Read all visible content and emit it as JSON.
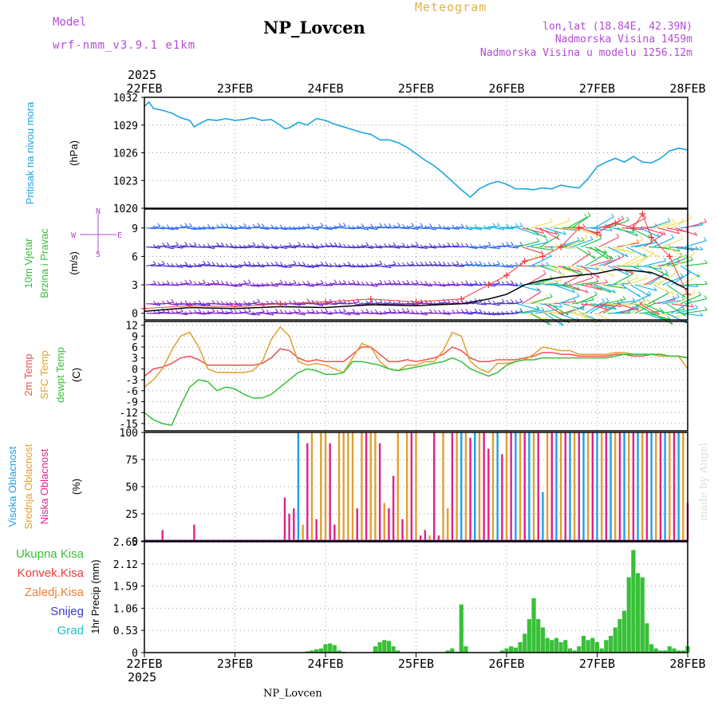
{
  "header": {
    "model_label": "Model",
    "model_name": "wrf-nmm_v3.9.1 e1km",
    "meteogram_title": "Meteogram",
    "station": "NP_Lovcen",
    "lonlat": "lon,lat (18.84E, 42.39N)",
    "altitude": "Nadmorska Visina 1459m",
    "model_altitude": "Nadmorska Visina u modelu 1256.12m"
  },
  "time_axis": {
    "year": "2025",
    "ticks": [
      "22FEB",
      "23FEB",
      "24FEB",
      "25FEB",
      "26FEB",
      "27FEB",
      "28FEB"
    ]
  },
  "watermark": "made by Angel",
  "footer": "NP_Lovcen",
  "chart_data": [
    {
      "type": "line",
      "ylabel": [
        "Pritisak na nivou mora",
        "(hPa)"
      ],
      "ylim": [
        1020,
        1032
      ],
      "yticks": [
        1020,
        1023,
        1026,
        1029,
        1032
      ],
      "x_unit": "days since 22FEB 00UTC",
      "x": [
        0,
        0.05,
        0.1,
        0.2,
        0.3,
        0.4,
        0.5,
        0.55,
        0.6,
        0.7,
        0.8,
        0.9,
        1.0,
        1.1,
        1.2,
        1.3,
        1.4,
        1.5,
        1.55,
        1.6,
        1.7,
        1.8,
        1.9,
        2.0,
        2.1,
        2.2,
        2.3,
        2.4,
        2.5,
        2.6,
        2.7,
        2.8,
        2.9,
        3.0,
        3.1,
        3.2,
        3.3,
        3.4,
        3.5,
        3.55,
        3.6,
        3.7,
        3.8,
        3.9,
        4.0,
        4.1,
        4.2,
        4.3,
        4.4,
        4.5,
        4.6,
        4.7,
        4.8,
        4.9,
        5.0,
        5.1,
        5.2,
        5.3,
        5.4,
        5.5,
        5.6,
        5.7,
        5.8,
        5.9,
        6.0
      ],
      "series": [
        {
          "color": "#1aa6e0",
          "values": [
            1031.0,
            1031.5,
            1030.8,
            1030.6,
            1030.3,
            1029.8,
            1029.5,
            1028.8,
            1029.1,
            1029.6,
            1029.5,
            1029.7,
            1029.5,
            1029.6,
            1029.8,
            1029.5,
            1029.6,
            1029.0,
            1028.6,
            1028.7,
            1029.3,
            1029.0,
            1029.7,
            1029.5,
            1029.1,
            1028.8,
            1028.5,
            1028.2,
            1028.0,
            1027.4,
            1027.4,
            1027.1,
            1026.6,
            1025.9,
            1025.2,
            1024.6,
            1023.8,
            1022.9,
            1022.0,
            1021.6,
            1021.2,
            1022.1,
            1022.6,
            1022.9,
            1022.6,
            1022.1,
            1022.1,
            1022.0,
            1022.2,
            1022.1,
            1022.5,
            1022.3,
            1022.2,
            1023.2,
            1024.5,
            1025.0,
            1025.4,
            1025.0,
            1025.6,
            1025.0,
            1024.9,
            1025.4,
            1026.2,
            1026.5,
            1026.3
          ]
        }
      ]
    },
    {
      "type": "scatter",
      "ylabel": [
        "10m Vjetar",
        "Brzina i Pravac",
        "(m/s)"
      ],
      "ylim": [
        -0.7,
        11
      ],
      "yticks": [
        0,
        3,
        6,
        9
      ],
      "compass": [
        "N",
        "S",
        "W",
        "E"
      ],
      "description": "wind barbs at levels 0,1,3,5,7,9; red plus markers = gust, black line = mean speed",
      "levels": [
        0,
        1,
        3,
        5,
        7,
        9
      ],
      "barb_colors": [
        "#7b24c9",
        "#4a2fd6",
        "#2e6bf0",
        "#17b4e6",
        "#25c24a",
        "#f0e060",
        "#f04a6a"
      ],
      "gust_series": {
        "name": "gust",
        "color": "#f03a3a",
        "x": [
          0,
          0.5,
          1.0,
          1.5,
          2.0,
          2.5,
          3.0,
          3.5,
          3.8,
          4.0,
          4.2,
          4.4,
          4.6,
          4.8,
          5.0,
          5.2,
          5.4,
          5.5,
          5.6,
          5.8,
          6.0
        ],
        "values": [
          0.5,
          0.8,
          0.7,
          1.0,
          1.2,
          1.5,
          1.2,
          1.5,
          3.0,
          4.0,
          5.5,
          6.0,
          7.0,
          9.0,
          8.5,
          9.5,
          9.0,
          10.5,
          8.0,
          6.0,
          2.0
        ]
      },
      "mean_series": {
        "name": "mean",
        "color": "#000000",
        "x": [
          0,
          0.5,
          1.0,
          1.5,
          2.0,
          2.5,
          3.0,
          3.5,
          3.8,
          4.0,
          4.2,
          4.4,
          4.6,
          4.8,
          5.0,
          5.2,
          5.4,
          5.6,
          5.8,
          6.0
        ],
        "values": [
          0.2,
          0.6,
          0.5,
          0.7,
          0.6,
          0.9,
          0.8,
          1.0,
          1.5,
          2.0,
          3.0,
          3.5,
          3.8,
          4.0,
          4.2,
          4.6,
          4.5,
          4.3,
          3.5,
          2.5
        ]
      }
    },
    {
      "type": "line",
      "ylabel": [
        "2m Temp",
        "SFC Temp",
        "dewpt Temp",
        "(C)"
      ],
      "ylim": [
        -17,
        13
      ],
      "yticks": [
        12,
        9,
        6,
        3,
        0,
        -3,
        -6,
        -9,
        -12,
        -15
      ],
      "x": [
        0,
        0.1,
        0.2,
        0.3,
        0.4,
        0.5,
        0.6,
        0.7,
        0.8,
        0.9,
        1.0,
        1.1,
        1.2,
        1.3,
        1.4,
        1.5,
        1.6,
        1.7,
        1.8,
        1.9,
        2.0,
        2.1,
        2.2,
        2.3,
        2.4,
        2.5,
        2.6,
        2.7,
        2.8,
        2.9,
        3.0,
        3.1,
        3.2,
        3.3,
        3.4,
        3.5,
        3.6,
        3.7,
        3.8,
        3.9,
        4.0,
        4.1,
        4.2,
        4.3,
        4.4,
        4.5,
        4.6,
        4.7,
        4.8,
        4.9,
        5.0,
        5.1,
        5.2,
        5.3,
        5.4,
        5.5,
        5.6,
        5.7,
        5.8,
        5.9,
        6.0
      ],
      "series": [
        {
          "name": "2m Temp",
          "color": "#f05050",
          "values": [
            -2,
            0,
            0.5,
            1.5,
            3,
            3.5,
            2.5,
            1,
            1,
            1,
            1,
            1,
            1,
            1.5,
            3,
            5.5,
            5,
            3,
            2,
            2.5,
            2,
            2,
            2,
            4,
            6,
            6,
            4,
            2,
            2,
            2.5,
            2,
            2.5,
            3,
            4,
            6,
            5,
            3,
            2,
            2,
            2.5,
            2.5,
            2.5,
            3,
            3.5,
            4.5,
            4.5,
            4,
            4,
            3.5,
            3.5,
            3.5,
            3.5,
            4,
            4,
            3.5,
            3.5,
            4,
            4,
            3.5,
            3.5,
            3
          ]
        },
        {
          "name": "SFC Temp",
          "color": "#e0a030",
          "values": [
            -5,
            -3,
            0,
            5,
            9,
            10,
            6,
            0,
            -1,
            -1,
            -1,
            -1,
            -0.5,
            2,
            8,
            11.5,
            9,
            2,
            1,
            1.5,
            1,
            0,
            -1,
            3,
            7,
            6,
            2,
            0,
            -0.5,
            1,
            1,
            2,
            2,
            5,
            10,
            9,
            2,
            0,
            -1,
            1.5,
            1.5,
            2,
            2.5,
            4,
            6,
            5.5,
            5,
            5,
            4,
            4,
            4,
            4,
            4.5,
            4.5,
            4,
            4,
            4,
            3.5,
            3.5,
            3.5,
            0
          ]
        },
        {
          "name": "dewpt Temp",
          "color": "#38c038",
          "values": [
            -12,
            -14,
            -15,
            -15.5,
            -10,
            -5,
            -3,
            -3.5,
            -6,
            -5,
            -5.5,
            -7,
            -8,
            -8,
            -7,
            -5,
            -3,
            -1,
            0,
            -0.5,
            -1.5,
            -1.5,
            -1,
            2,
            2,
            1.5,
            1,
            0,
            -0.5,
            0,
            0.5,
            1,
            1.5,
            2,
            3,
            2,
            0,
            -1,
            -2,
            -1,
            1,
            2,
            2.5,
            2.5,
            3,
            3,
            3,
            3,
            3,
            3,
            3,
            3,
            3.5,
            4,
            4,
            4,
            4,
            4,
            3.5,
            3.5,
            3
          ]
        }
      ]
    },
    {
      "type": "bar",
      "ylabel": [
        "Visoka Oblacnost",
        "Srednja Oblacnost",
        "Niska Oblacnost",
        "(%)"
      ],
      "ylim": [
        0,
        100
      ],
      "yticks": [
        0,
        25,
        50,
        75,
        100
      ],
      "series": [
        {
          "name": "Visoka Oblacnost",
          "color": "#1ea0e8"
        },
        {
          "name": "Srednja Oblacnost",
          "color": "#e0a030"
        },
        {
          "name": "Niska Oblacnost",
          "color": "#e0208a"
        }
      ],
      "x": [
        0.2,
        0.55,
        1.55,
        1.6,
        1.65,
        1.7,
        1.75,
        1.8,
        1.85,
        1.9,
        1.95,
        2.0,
        2.05,
        2.1,
        2.15,
        2.2,
        2.25,
        2.3,
        2.35,
        2.4,
        2.45,
        2.5,
        2.55,
        2.6,
        2.65,
        2.7,
        2.75,
        2.8,
        2.85,
        2.9,
        2.95,
        3.0,
        3.05,
        3.1,
        3.15,
        3.2,
        3.25,
        3.3,
        3.35,
        3.4,
        3.45,
        3.5,
        3.55,
        3.6,
        3.65,
        3.7,
        3.75,
        3.8,
        3.85,
        3.9,
        3.95,
        4.0,
        4.05,
        4.1,
        4.15,
        4.2,
        4.25,
        4.3,
        4.35,
        4.4,
        4.45,
        4.5,
        4.55,
        4.6,
        4.65,
        4.7,
        4.75,
        4.8,
        4.85,
        4.9,
        4.95,
        5.0,
        5.05,
        5.1,
        5.15,
        5.2,
        5.25,
        5.3,
        5.35,
        5.4,
        5.45,
        5.5,
        5.55,
        5.6,
        5.65,
        5.7,
        5.75,
        5.8,
        5.85,
        5.9,
        5.95,
        6.0
      ],
      "values": [
        10,
        15,
        40,
        25,
        30,
        100,
        15,
        90,
        100,
        20,
        100,
        100,
        90,
        15,
        100,
        100,
        100,
        100,
        30,
        100,
        100,
        100,
        100,
        90,
        35,
        30,
        60,
        100,
        20,
        100,
        100,
        100,
        5,
        10,
        5,
        100,
        5,
        100,
        30,
        100,
        100,
        100,
        100,
        95,
        100,
        100,
        100,
        85,
        100,
        100,
        80,
        100,
        100,
        100,
        100,
        100,
        100,
        100,
        100,
        45,
        100,
        100,
        100,
        100,
        100,
        100,
        100,
        100,
        100,
        100,
        100,
        100,
        100,
        100,
        100,
        100,
        100,
        100,
        100,
        100,
        100,
        100,
        100,
        100,
        100,
        100,
        100,
        100,
        100,
        100,
        100,
        35
      ],
      "categories_color": [
        "#e0208a",
        "#e0208a",
        "#e0208a",
        "#e0208a",
        "#e0208a",
        "#1ea0e8",
        "#e0a030",
        "#e0208a",
        "#e0a030",
        "#e0208a",
        "#e0a030",
        "#e0a030",
        "#e0208a",
        "#e0208a",
        "#e0a030",
        "#e0a030",
        "#e0a030",
        "#e0a030",
        "#e0208a",
        "#e0a030",
        "#e0208a",
        "#e0a030",
        "#e0a030",
        "#e0208a",
        "#e0a030",
        "#e0208a",
        "#e0208a",
        "#e0a030",
        "#e0208a",
        "#e0a030",
        "#e0208a",
        "#e0a030",
        "#e0208a",
        "#e0208a",
        "#e0a030",
        "#e0208a",
        "#e0208a",
        "#e0a030",
        "#e0a030",
        "#e0208a",
        "#e0a030",
        "#1ea0e8",
        "#e0a030",
        "#e0208a",
        "#1ea0e8",
        "#e0a030",
        "#e0208a",
        "#e0208a",
        "#e0a030",
        "#1ea0e8",
        "#e0208a",
        "#e0a030",
        "#e0208a",
        "#1ea0e8",
        "#e0a030",
        "#e0208a",
        "#1ea0e8",
        "#e0a030",
        "#e0208a",
        "#1ea0e8",
        "#e0a030",
        "#e0208a",
        "#1ea0e8",
        "#e0a030",
        "#e0208a",
        "#1ea0e8",
        "#e0a030",
        "#e0208a",
        "#1ea0e8",
        "#e0a030",
        "#e0208a",
        "#1ea0e8",
        "#e0a030",
        "#e0208a",
        "#1ea0e8",
        "#e0a030",
        "#e0208a",
        "#1ea0e8",
        "#e0a030",
        "#e0208a",
        "#1ea0e8",
        "#e0a030",
        "#e0208a",
        "#1ea0e8",
        "#e0a030",
        "#e0208a",
        "#1ea0e8",
        "#e0a030",
        "#e0208a",
        "#1ea0e8",
        "#e0a030",
        "#e0208a"
      ]
    },
    {
      "type": "bar",
      "ylabel": "1hr Precip (mm)",
      "ylim": [
        0,
        2.65
      ],
      "yticks": [
        0,
        0.53,
        1.06,
        1.59,
        2.12,
        2.65
      ],
      "legend": [
        {
          "name": "Ukupna Kisa",
          "color": "#38c038"
        },
        {
          "name": "Konvek.Kisa",
          "color": "#f03a3a"
        },
        {
          "name": "Zaledj.Kisa",
          "color": "#f08030"
        },
        {
          "name": "Snijeg",
          "color": "#3a3ad0"
        },
        {
          "name": "Grad",
          "color": "#20c0c0"
        }
      ],
      "x": [
        1.8,
        1.85,
        1.9,
        1.95,
        2.0,
        2.05,
        2.1,
        2.15,
        2.2,
        2.55,
        2.6,
        2.65,
        2.7,
        2.75,
        2.8,
        3.35,
        3.4,
        3.45,
        3.5,
        3.55,
        3.95,
        4.0,
        4.05,
        4.1,
        4.15,
        4.2,
        4.25,
        4.3,
        4.35,
        4.4,
        4.45,
        4.5,
        4.55,
        4.6,
        4.65,
        4.7,
        4.75,
        4.8,
        4.85,
        4.9,
        4.95,
        5.0,
        5.05,
        5.1,
        5.15,
        5.2,
        5.25,
        5.3,
        5.35,
        5.4,
        5.45,
        5.5,
        5.55,
        5.6,
        5.65,
        5.7,
        5.75,
        5.8,
        5.85,
        5.9,
        5.95,
        6.0
      ],
      "values": [
        0.03,
        0.05,
        0.08,
        0.1,
        0.2,
        0.22,
        0.18,
        0.05,
        0.02,
        0.15,
        0.25,
        0.3,
        0.28,
        0.15,
        0.05,
        0.05,
        0.1,
        0.02,
        1.15,
        0.15,
        0.05,
        0.1,
        0.15,
        0.12,
        0.25,
        0.45,
        0.8,
        1.3,
        0.8,
        0.6,
        0.35,
        0.3,
        0.35,
        0.25,
        0.3,
        0.1,
        0.05,
        0.15,
        0.4,
        0.3,
        0.35,
        0.25,
        0.1,
        0.3,
        0.4,
        0.6,
        0.8,
        1.0,
        1.8,
        2.45,
        1.9,
        1.8,
        0.7,
        0.2,
        0.1,
        0.05,
        0.05,
        0.15,
        0.1,
        0.05,
        0.05,
        0.15
      ]
    }
  ]
}
